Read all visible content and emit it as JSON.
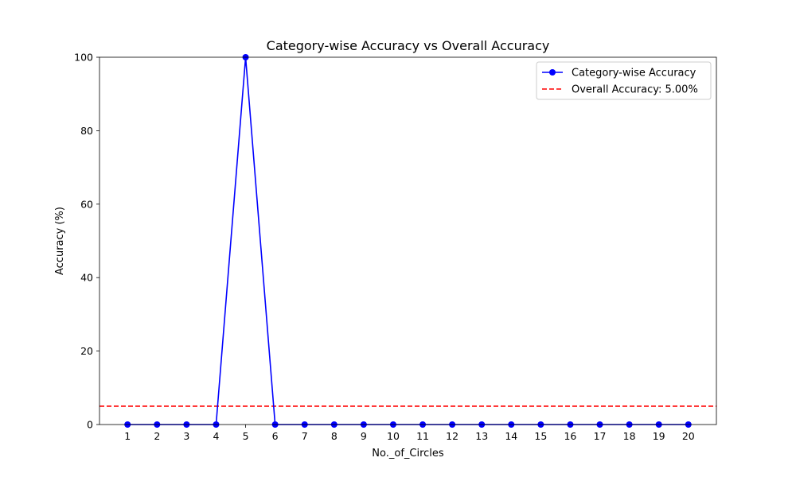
{
  "chart_data": {
    "type": "line",
    "title": "Category-wise Accuracy vs Overall Accuracy",
    "xlabel": "No._of_Circles",
    "ylabel": "Accuracy (%)",
    "x": [
      1,
      2,
      3,
      4,
      5,
      6,
      7,
      8,
      9,
      10,
      11,
      12,
      13,
      14,
      15,
      16,
      17,
      18,
      19,
      20
    ],
    "xticks": [
      "1",
      "2",
      "3",
      "4",
      "5",
      "6",
      "7",
      "8",
      "9",
      "10",
      "11",
      "12",
      "13",
      "14",
      "15",
      "16",
      "17",
      "18",
      "19",
      "20"
    ],
    "xlim": [
      0.05,
      20.95
    ],
    "ylim": [
      0,
      100
    ],
    "yticks": [
      "0",
      "20",
      "40",
      "60",
      "80",
      "100"
    ],
    "series": [
      {
        "name": "Category-wise Accuracy",
        "values": [
          0,
          0,
          0,
          0,
          100,
          0,
          0,
          0,
          0,
          0,
          0,
          0,
          0,
          0,
          0,
          0,
          0,
          0,
          0,
          0
        ],
        "color": "#0000ff",
        "marker": "circle"
      }
    ],
    "reference_line": {
      "name": "Overall Accuracy: 5.00%",
      "y": 5,
      "color": "#ff0000",
      "style": "dashed"
    },
    "grid": false,
    "legend_position": "top-right"
  }
}
